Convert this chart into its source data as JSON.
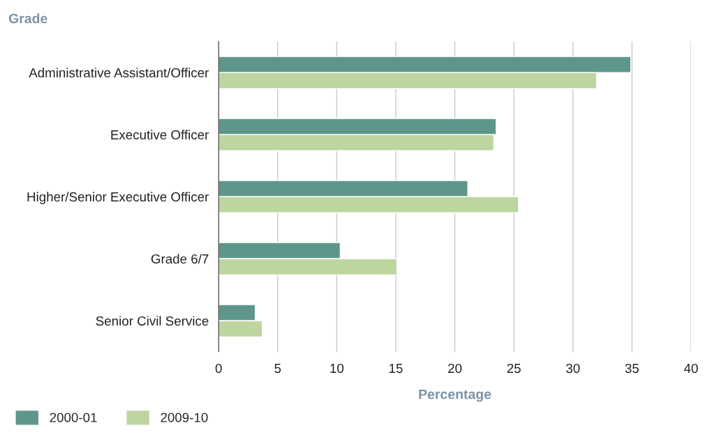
{
  "chart_data": {
    "type": "bar",
    "orientation": "horizontal",
    "ylabel": "Grade",
    "xlabel": "Percentage",
    "categories": [
      "Administrative Assistant/Officer",
      "Executive Officer",
      "Higher/Senior Executive Officer",
      "Grade 6/7",
      "Senior Civil Service"
    ],
    "series": [
      {
        "name": "2000-01",
        "color": "#5f968b",
        "values": [
          34.9,
          23.5,
          21.1,
          10.3,
          3.1
        ]
      },
      {
        "name": "2009-10",
        "color": "#bdd59f",
        "values": [
          32.0,
          23.3,
          25.4,
          15.1,
          3.7
        ]
      }
    ],
    "xlim": [
      0,
      40
    ],
    "xticks": [
      0,
      5,
      10,
      15,
      20,
      25,
      30,
      35,
      40
    ],
    "grid": "x",
    "legend": "bottom left"
  }
}
